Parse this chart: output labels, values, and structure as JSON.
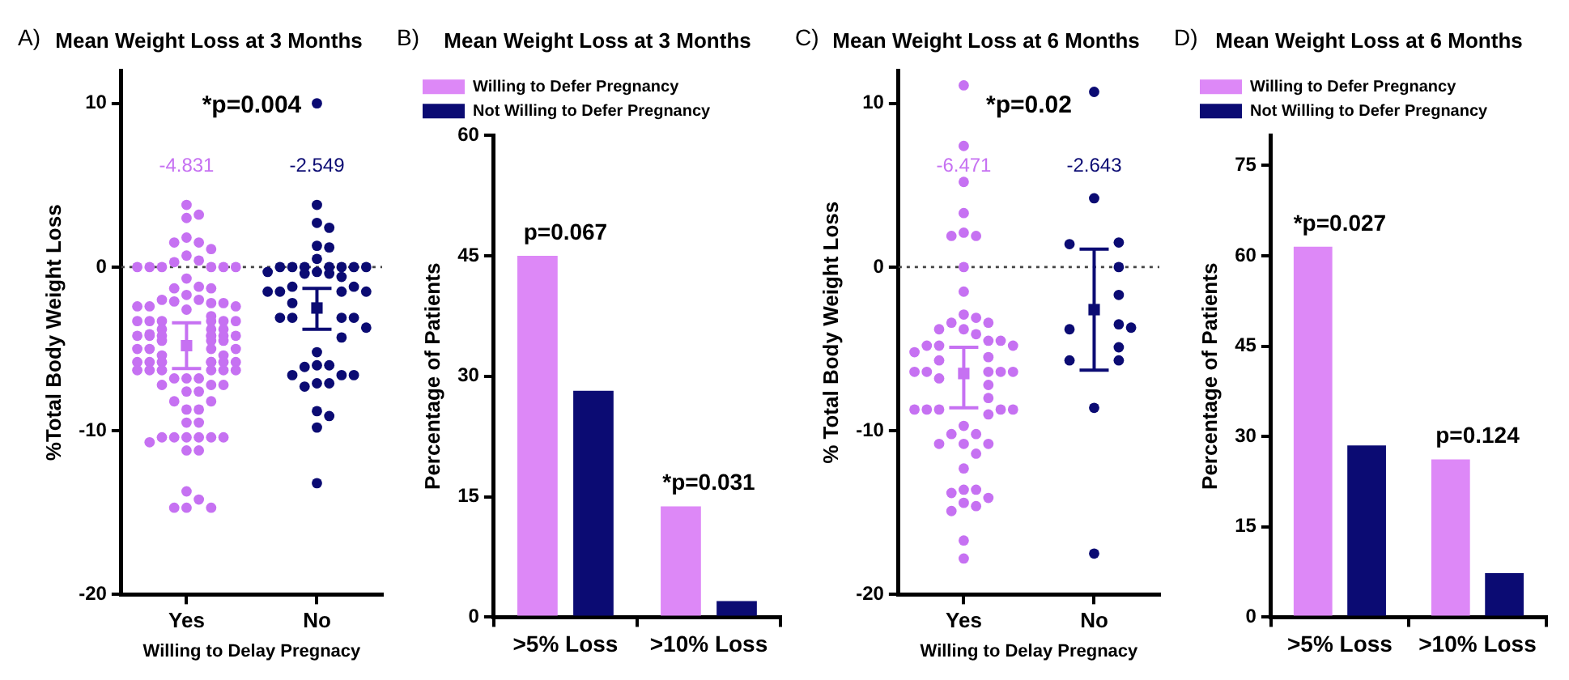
{
  "chart_data": [
    {
      "type": "scatter",
      "title": "Mean Weight Loss at 3 Months",
      "xlabel": "Willing to Delay Pregnacy",
      "ylabel": "%Total Body Weight Loss",
      "categories": [
        "Yes",
        "No"
      ],
      "ylim": [
        -20,
        12
      ],
      "yticks": [
        -20,
        -10,
        0,
        10
      ],
      "grid": false,
      "legend": false,
      "marker": "circle",
      "annotations": [
        "A)",
        "*p=0.004",
        "-4.831",
        "-2.549"
      ],
      "ref_lines": [
        {
          "axis": "y",
          "value": 0,
          "line_style": "dotted",
          "color": "#444444"
        }
      ],
      "series": [
        {
          "color": "#c671f2",
          "x": [
            "Yes",
            "Yes",
            "Yes",
            "Yes",
            "Yes",
            "Yes",
            "Yes",
            "Yes",
            "Yes",
            "Yes",
            "Yes",
            "Yes",
            "Yes",
            "Yes",
            "Yes",
            "Yes",
            "Yes",
            "Yes",
            "Yes",
            "Yes",
            "Yes",
            "Yes",
            "Yes",
            "Yes",
            "Yes",
            "Yes",
            "Yes",
            "Yes",
            "Yes",
            "Yes",
            "Yes",
            "Yes",
            "Yes",
            "Yes",
            "Yes",
            "Yes",
            "Yes",
            "Yes",
            "Yes",
            "Yes",
            "Yes",
            "Yes",
            "Yes",
            "Yes",
            "Yes",
            "Yes",
            "Yes",
            "Yes",
            "Yes",
            "Yes",
            "Yes",
            "Yes",
            "Yes",
            "Yes",
            "Yes",
            "Yes",
            "Yes",
            "Yes",
            "Yes",
            "Yes",
            "Yes",
            "Yes",
            "Yes",
            "Yes",
            "Yes",
            "Yes",
            "Yes",
            "Yes",
            "Yes",
            "Yes",
            "Yes",
            "Yes",
            "Yes",
            "Yes",
            "Yes",
            "Yes",
            "Yes",
            "Yes",
            "Yes",
            "Yes",
            "Yes",
            "Yes",
            "Yes",
            "Yes",
            "Yes",
            "Yes",
            "Yes",
            "Yes",
            "Yes",
            "Yes",
            "Yes",
            "Yes",
            "Yes",
            "Yes",
            "Yes",
            "Yes",
            "Yes",
            "Yes"
          ],
          "values": [
            3.8,
            3.0,
            3.2,
            1.8,
            1.5,
            1.5,
            1.1,
            0.7,
            0.4,
            0.3,
            0,
            0,
            0,
            0,
            0,
            0,
            -0.7,
            -1.2,
            -1.3,
            -1.3,
            -1.7,
            -2.0,
            -2.0,
            -2.1,
            -2.2,
            -2.2,
            -2.4,
            -2.4,
            -2.4,
            -2.6,
            -3.0,
            -3.3,
            -3.3,
            -3.3,
            -3.3,
            -3.3,
            -3.3,
            -3.8,
            -3.8,
            -3.8,
            -4.1,
            -4.2,
            -4.2,
            -4.2,
            -4.2,
            -4.2,
            -4.2,
            -4.2,
            -4.5,
            -4.5,
            -4.5,
            -5.0,
            -5.0,
            -5.0,
            -5.0,
            -5.4,
            -5.4,
            -5.8,
            -5.8,
            -5.8,
            -5.8,
            -5.8,
            -5.8,
            -5.8,
            -6.3,
            -6.3,
            -6.3,
            -6.3,
            -6.3,
            -6.3,
            -6.8,
            -6.8,
            -6.8,
            -7.2,
            -7.2,
            -7.2,
            -7.6,
            -7.6,
            -8.2,
            -8.2,
            -8.7,
            -8.7,
            -9.5,
            -9.5,
            -10.4,
            -10.4,
            -10.4,
            -10.4,
            -10.4,
            -10.4,
            -10.7,
            -11.2,
            -11.2,
            -13.7,
            -14.2,
            -14.7,
            -14.7,
            -14.7
          ]
        },
        {
          "color": "#0b0b73",
          "x": [
            "No",
            "No",
            "No",
            "No",
            "No",
            "No",
            "No",
            "No",
            "No",
            "No",
            "No",
            "No",
            "No",
            "No",
            "No",
            "No",
            "No",
            "No",
            "No",
            "No",
            "No",
            "No",
            "No",
            "No",
            "No",
            "No",
            "No",
            "No",
            "No",
            "No",
            "No",
            "No",
            "No",
            "No",
            "No",
            "No",
            "No",
            "No",
            "No",
            "No",
            "No",
            "No",
            "No",
            "No",
            "No",
            "No"
          ],
          "values": [
            10.0,
            3.8,
            2.7,
            2.4,
            1.3,
            1.2,
            0.5,
            0,
            0,
            0,
            0,
            0,
            0,
            0,
            -0.3,
            -0.3,
            -0.4,
            -0.4,
            -0.6,
            -1.2,
            -1.2,
            -1.5,
            -1.5,
            -1.5,
            -1.5,
            -2.2,
            -3.1,
            -3.1,
            -3.1,
            -3.1,
            -3.7,
            -4.3,
            -5.2,
            -6.0,
            -6.0,
            -6.1,
            -6.6,
            -6.6,
            -6.6,
            -7.1,
            -7.1,
            -7.3,
            -8.8,
            -9.1,
            -9.8,
            -13.2
          ]
        },
        {
          "colors": [
            "#c671f2",
            "#0b0b73"
          ],
          "marker": "square",
          "x": [
            "Yes",
            "No"
          ],
          "values": [
            -4.8,
            -2.5
          ],
          "errors": [
            [
              -6.2,
              -3.4
            ],
            [
              -3.8,
              -1.3
            ]
          ]
        }
      ]
    },
    {
      "type": "bar",
      "title": "Mean Weight Loss at 3 Months",
      "ylabel": "Percentage of Patients",
      "categories": [
        ">5% Loss",
        ">10% Loss"
      ],
      "ylim": [
        0,
        60
      ],
      "yticks": [
        0,
        15,
        30,
        45,
        60
      ],
      "grid": false,
      "legend": "top left",
      "annotations": [
        "B)",
        "p=0.067",
        "*p=0.031"
      ],
      "series": [
        {
          "name": "Willing to Defer Pregnancy",
          "color": "#dd88f7",
          "values": [
            45,
            13.8
          ]
        },
        {
          "name": "Not Willing to Defer Pregnancy",
          "color": "#0b0b73",
          "values": [
            28.2,
            2.0
          ]
        }
      ]
    },
    {
      "type": "scatter",
      "title": "Mean Weight Loss at 6 Months",
      "xlabel": "Willing to Delay Pregnacy",
      "ylabel": "% Total Body Weight Loss",
      "categories": [
        "Yes",
        "No"
      ],
      "ylim": [
        -20,
        12
      ],
      "yticks": [
        -20,
        -10,
        0,
        10
      ],
      "grid": false,
      "legend": false,
      "marker": "circle",
      "annotations": [
        "C)",
        "*p=0.02",
        "-6.471",
        "-2.643"
      ],
      "ref_lines": [
        {
          "axis": "y",
          "value": 0,
          "line_style": "dotted",
          "color": "#444444"
        }
      ],
      "series": [
        {
          "color": "#c671f2",
          "x": [
            "Yes",
            "Yes",
            "Yes",
            "Yes",
            "Yes",
            "Yes",
            "Yes",
            "Yes",
            "Yes",
            "Yes",
            "Yes",
            "Yes",
            "Yes",
            "Yes",
            "Yes",
            "Yes",
            "Yes",
            "Yes",
            "Yes",
            "Yes",
            "Yes",
            "Yes",
            "Yes",
            "Yes",
            "Yes",
            "Yes",
            "Yes",
            "Yes",
            "Yes",
            "Yes",
            "Yes",
            "Yes",
            "Yes",
            "Yes",
            "Yes",
            "Yes",
            "Yes",
            "Yes",
            "Yes",
            "Yes",
            "Yes",
            "Yes",
            "Yes",
            "Yes",
            "Yes",
            "Yes",
            "Yes",
            "Yes",
            "Yes",
            "Yes",
            "Yes",
            "Yes",
            "Yes",
            "Yes",
            "Yes"
          ],
          "values": [
            11.1,
            7.4,
            5.2,
            3.3,
            2.1,
            1.9,
            1.9,
            0,
            -1.5,
            -2.9,
            -3.1,
            -3.4,
            -3.4,
            -3.8,
            -3.8,
            -4.1,
            -4.5,
            -4.5,
            -4.8,
            -4.8,
            -4.8,
            -5.2,
            -5.5,
            -5.7,
            -6.4,
            -6.4,
            -6.4,
            -6.4,
            -6.4,
            -6.8,
            -7.2,
            -8.0,
            -8.7,
            -8.7,
            -8.7,
            -8.7,
            -8.7,
            -9.0,
            -9.7,
            -10.2,
            -10.2,
            -10.8,
            -10.8,
            -10.8,
            -11.4,
            -12.3,
            -13.6,
            -13.6,
            -13.8,
            -14.1,
            -14.4,
            -14.6,
            -14.9,
            -16.7,
            -17.8
          ]
        },
        {
          "color": "#0b0b73",
          "x": [
            "No",
            "No",
            "No",
            "No",
            "No",
            "No",
            "No",
            "No",
            "No",
            "No",
            "No",
            "No",
            "No",
            "No"
          ],
          "values": [
            10.7,
            4.2,
            1.5,
            1.4,
            0,
            -1.7,
            -3.5,
            -3.8,
            -3.7,
            -4.9,
            -5.7,
            -5.7,
            -8.6,
            -17.5
          ]
        },
        {
          "colors": [
            "#c671f2",
            "#0b0b73"
          ],
          "marker": "square",
          "x": [
            "Yes",
            "No"
          ],
          "values": [
            -6.5,
            -2.6
          ],
          "errors": [
            [
              -8.6,
              -4.9
            ],
            [
              -6.3,
              1.1
            ]
          ]
        }
      ]
    },
    {
      "type": "bar",
      "title": "Mean Weight Loss at 6 Months",
      "ylabel": "Percentage of Patients",
      "categories": [
        ">5% Loss",
        ">10% Loss"
      ],
      "ylim": [
        0,
        80
      ],
      "yticks": [
        0,
        15,
        30,
        45,
        60,
        75
      ],
      "grid": false,
      "legend": "top left",
      "annotations": [
        "D)",
        "*p=0.027",
        "p=0.124"
      ],
      "series": [
        {
          "name": "Willing to Defer Pregnancy",
          "color": "#dd88f7",
          "values": [
            61.5,
            26.2
          ]
        },
        {
          "name": "Not Willing to Defer Pregnancy",
          "color": "#0b0b73",
          "values": [
            28.5,
            7.3
          ]
        }
      ]
    }
  ]
}
